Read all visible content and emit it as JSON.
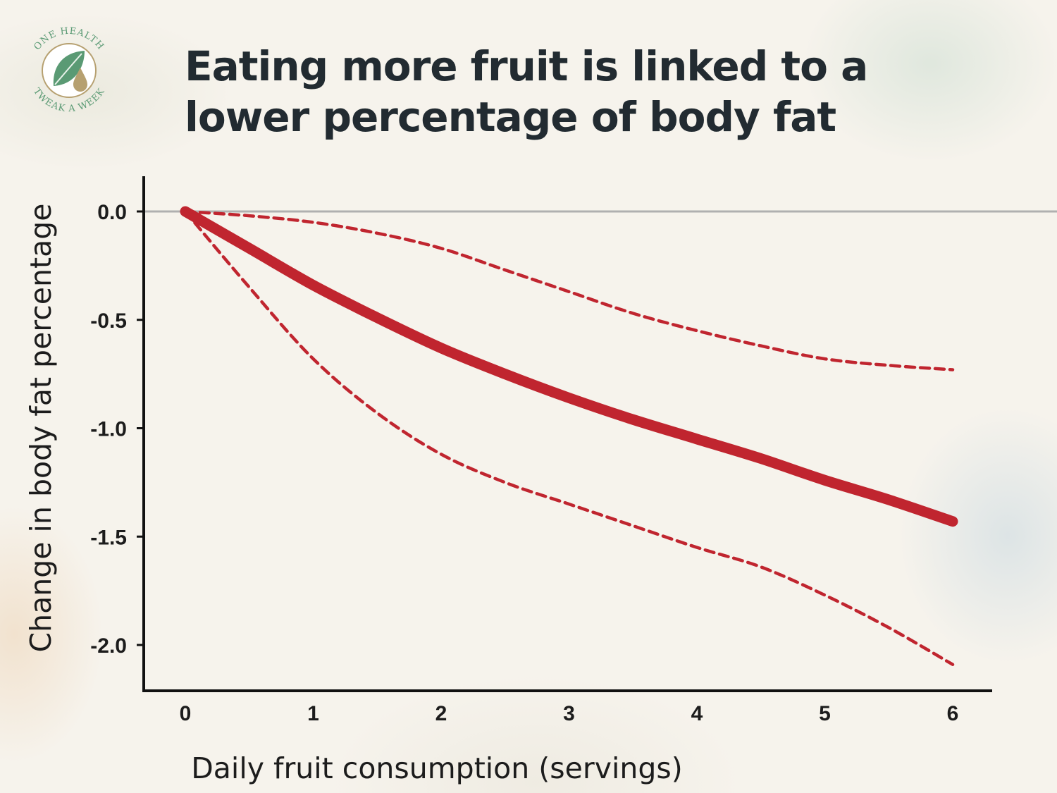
{
  "brand": {
    "logo_top_text": "ONE HEALTH",
    "logo_bottom_text": "TWEAK A WEEK"
  },
  "colors": {
    "line": "#c0252f",
    "text": "#222b31",
    "axis": "#111111",
    "zero_line": "#b0b0b0",
    "logo_green": "#5a9a74",
    "logo_gold": "#b6a070"
  },
  "chart_data": {
    "type": "line",
    "title_lines": [
      "Eating more fruit is linked to a",
      "lower percentage of body fat"
    ],
    "xlabel": "Daily fruit consumption (servings)",
    "ylabel": "Change in body fat percentage",
    "xlim": [
      0,
      6
    ],
    "ylim": [
      -2.2,
      0.15
    ],
    "x_ticks": [
      0,
      1,
      2,
      3,
      4,
      5,
      6
    ],
    "x_tick_labels": [
      "0",
      "1",
      "2",
      "3",
      "4",
      "5",
      "6"
    ],
    "y_ticks": [
      0.0,
      -0.5,
      -1.0,
      -1.5,
      -2.0
    ],
    "y_tick_labels": [
      "0.0",
      "-0.5",
      "-1.0",
      "-1.5",
      "-2.0"
    ],
    "reference_line": 0.0,
    "series": [
      {
        "name": "estimate",
        "style": "solid",
        "x": [
          0,
          0.5,
          1,
          1.5,
          2,
          2.5,
          3,
          3.5,
          4,
          4.5,
          5,
          5.5,
          6
        ],
        "y": [
          0.0,
          -0.17,
          -0.34,
          -0.49,
          -0.63,
          -0.75,
          -0.86,
          -0.96,
          -1.05,
          -1.14,
          -1.24,
          -1.33,
          -1.43
        ]
      },
      {
        "name": "upper bound",
        "style": "dashed",
        "x": [
          0,
          0.5,
          1,
          1.5,
          2,
          2.5,
          3,
          3.5,
          4,
          4.5,
          5,
          5.5,
          6
        ],
        "y": [
          0.0,
          -0.02,
          -0.05,
          -0.1,
          -0.17,
          -0.27,
          -0.37,
          -0.47,
          -0.55,
          -0.62,
          -0.68,
          -0.71,
          -0.73
        ]
      },
      {
        "name": "lower bound",
        "style": "dashed",
        "x": [
          0,
          0.5,
          1,
          1.5,
          2,
          2.5,
          3,
          3.5,
          4,
          4.5,
          5,
          5.5,
          6
        ],
        "y": [
          0.0,
          -0.35,
          -0.68,
          -0.93,
          -1.12,
          -1.25,
          -1.35,
          -1.45,
          -1.55,
          -1.64,
          -1.77,
          -1.92,
          -2.09
        ]
      }
    ]
  }
}
